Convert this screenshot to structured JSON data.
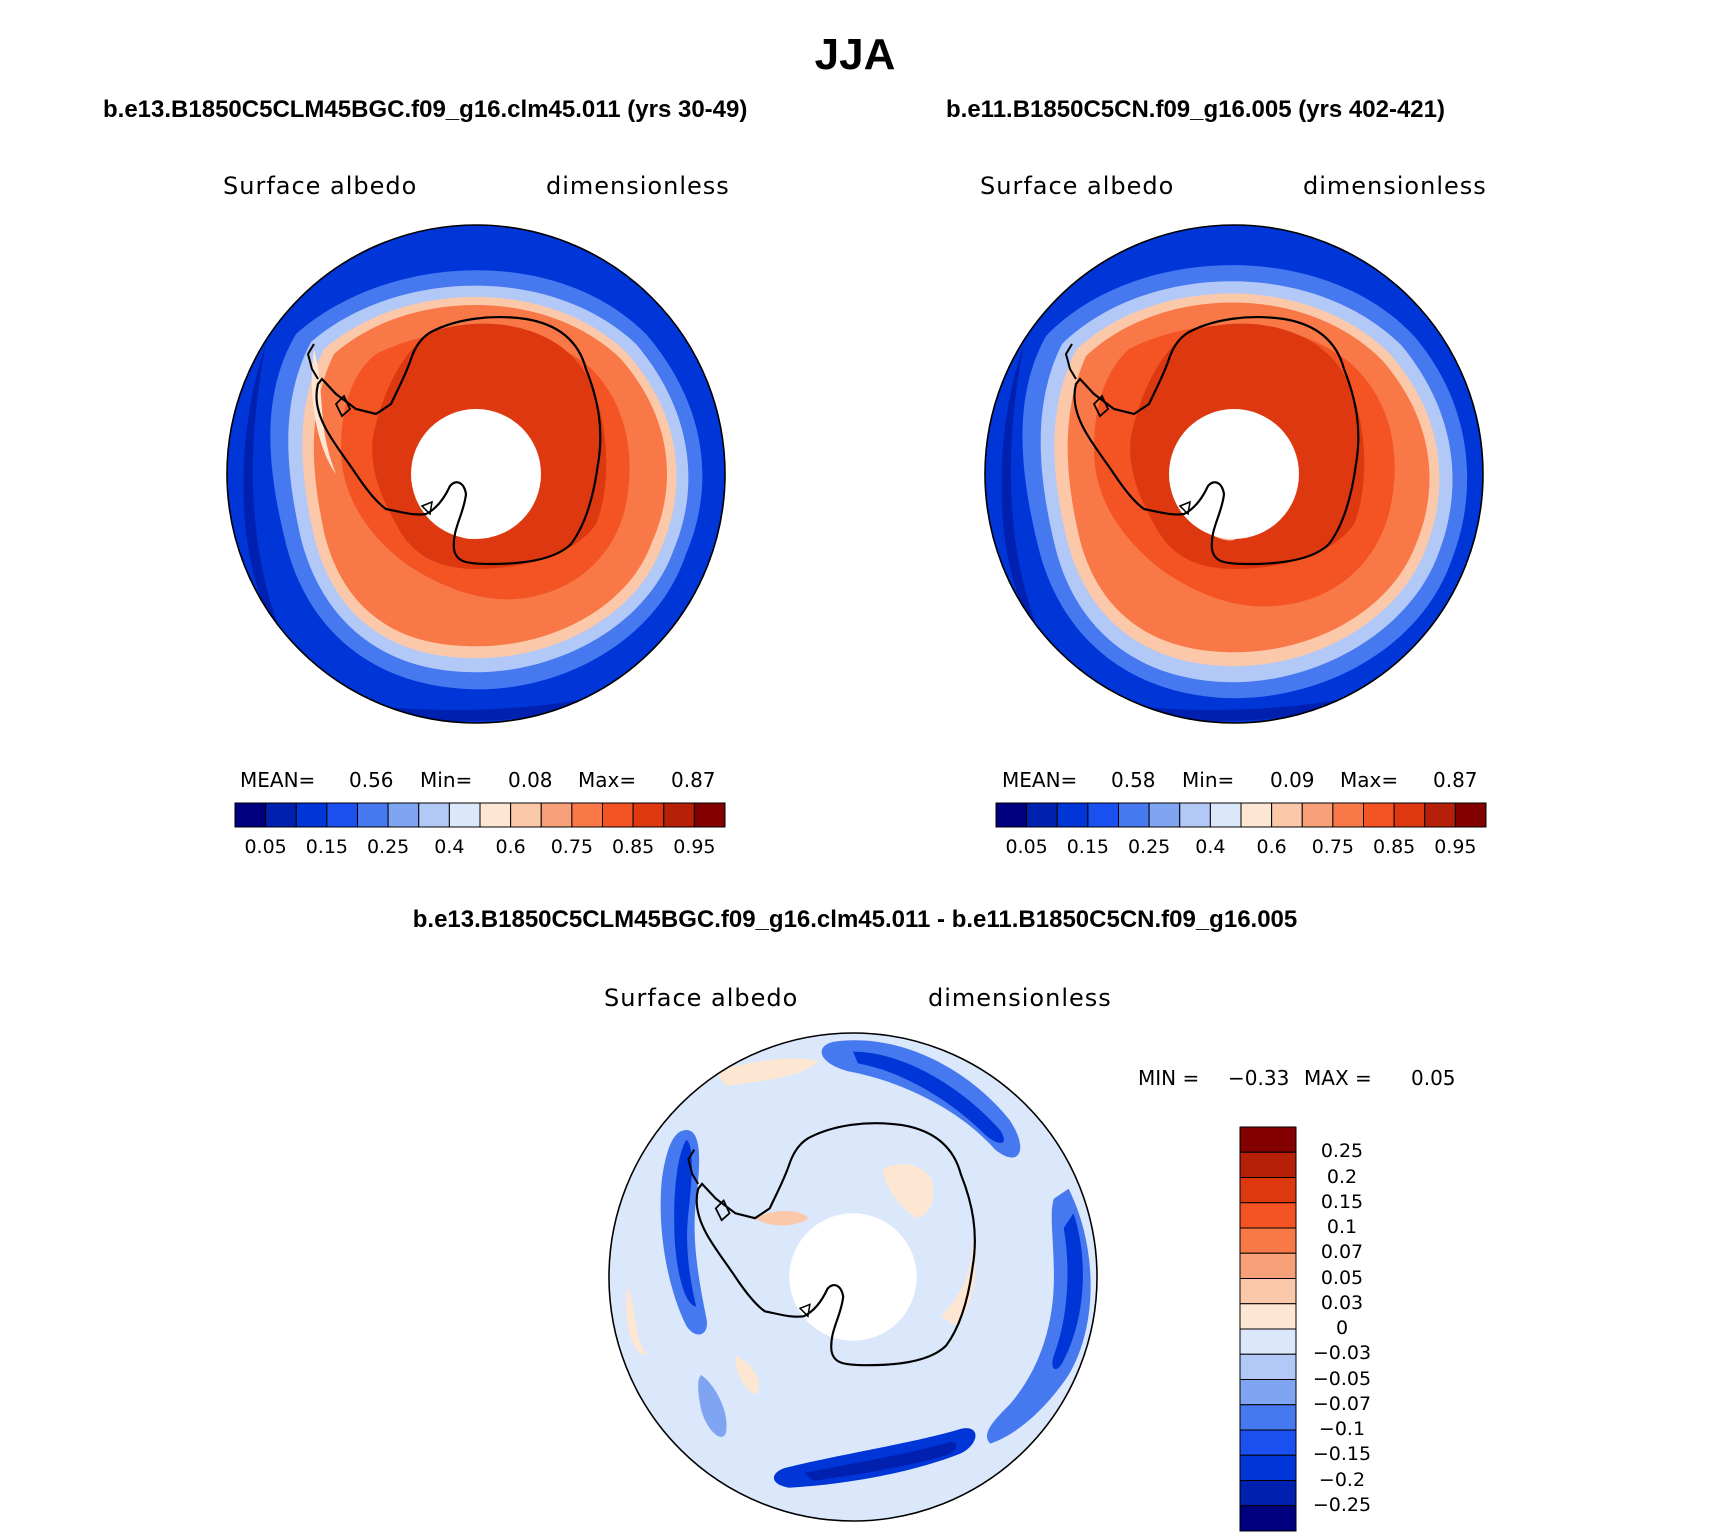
{
  "figure": {
    "season": "JJA"
  },
  "panels": [
    {
      "case_title": "b.e13.B1850C5CLM45BGC.f09_g16.clm45.011 (yrs 30-49)",
      "variable": "Surface albedo",
      "units": "dimensionless",
      "stats": {
        "mean_label": "MEAN=",
        "mean": "0.56",
        "min_label": "Min=",
        "min": "0.08",
        "max_label": "Max=",
        "max": "0.87"
      }
    },
    {
      "case_title": "b.e11.B1850C5CN.f09_g16.005 (yrs 402-421)",
      "variable": "Surface albedo",
      "units": "dimensionless",
      "stats": {
        "mean_label": "MEAN=",
        "mean": "0.58",
        "min_label": "Min=",
        "min": "0.09",
        "max_label": "Max=",
        "max": "0.87"
      }
    }
  ],
  "difference_panel": {
    "case_title": "b.e13.B1850C5CLM45BGC.f09_g16.clm45.011 - b.e11.B1850C5CN.f09_g16.005",
    "variable": "Surface albedo",
    "units": "dimensionless",
    "stats": {
      "min_label": "MIN =",
      "min": "−0.33",
      "max_label": "MAX =",
      "max": "0.05"
    }
  },
  "colorbars": {
    "absolute": {
      "colors": [
        "#00007f",
        "#0020b0",
        "#0036d8",
        "#1a50f0",
        "#4678f0",
        "#7ea4f2",
        "#b2c8f6",
        "#dbe8fb",
        "#fde6d2",
        "#fcc8aa",
        "#f8a07a",
        "#f87848",
        "#f45424",
        "#de3810",
        "#b62008",
        "#820000"
      ],
      "tick_labels": [
        "0.05",
        "0.15",
        "0.25",
        "0.4",
        "0.6",
        "0.75",
        "0.85",
        "0.95"
      ]
    },
    "difference": {
      "colors": [
        "#00007f",
        "#0020b0",
        "#0036d8",
        "#1a50f0",
        "#4678f0",
        "#7ea4f2",
        "#b2c8f6",
        "#dbe8fb",
        "#fde6d2",
        "#fcc8aa",
        "#f8a07a",
        "#f87848",
        "#f45424",
        "#de3810",
        "#b62008",
        "#820000"
      ],
      "tick_labels": [
        "0.25",
        "0.2",
        "0.15",
        "0.1",
        "0.07",
        "0.05",
        "0.03",
        "0",
        "−0.03",
        "−0.05",
        "−0.07",
        "−0.1",
        "−0.15",
        "−0.2",
        "−0.25"
      ]
    }
  }
}
